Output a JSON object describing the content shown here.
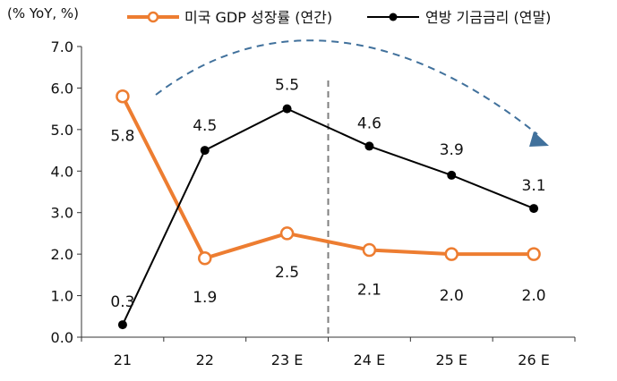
{
  "chart_data": {
    "type": "line",
    "title": "",
    "unit_label": "(% YoY, %)",
    "categories": [
      "21",
      "22",
      "23 E",
      "24 E",
      "25 E",
      "26 E"
    ],
    "ylim": [
      0,
      7
    ],
    "yticks": [
      "0.0",
      "1.0",
      "2.0",
      "3.0",
      "4.0",
      "5.0",
      "6.0",
      "7.0"
    ],
    "series": [
      {
        "name": "미국 GDP 성장률 (연간)",
        "color": "#ED7D31",
        "marker": "open-circle",
        "values": [
          5.8,
          1.9,
          2.5,
          2.1,
          2.0,
          2.0
        ],
        "labels": [
          "5.8",
          "1.9",
          "2.5",
          "2.1",
          "2.0",
          "2.0"
        ]
      },
      {
        "name": "연방 기금금리 (연말)",
        "color": "#000000",
        "marker": "filled-circle",
        "values": [
          0.3,
          4.5,
          5.5,
          4.6,
          3.9,
          3.1
        ],
        "labels": [
          "0.3",
          "4.5",
          "5.5",
          "4.6",
          "3.9",
          "3.1"
        ]
      }
    ],
    "annotations": {
      "forecast_divider_between": [
        "23 E",
        "24 E"
      ],
      "trend_arrow": "dashed curve, downward arrow",
      "trend_color": "#41719C"
    }
  }
}
